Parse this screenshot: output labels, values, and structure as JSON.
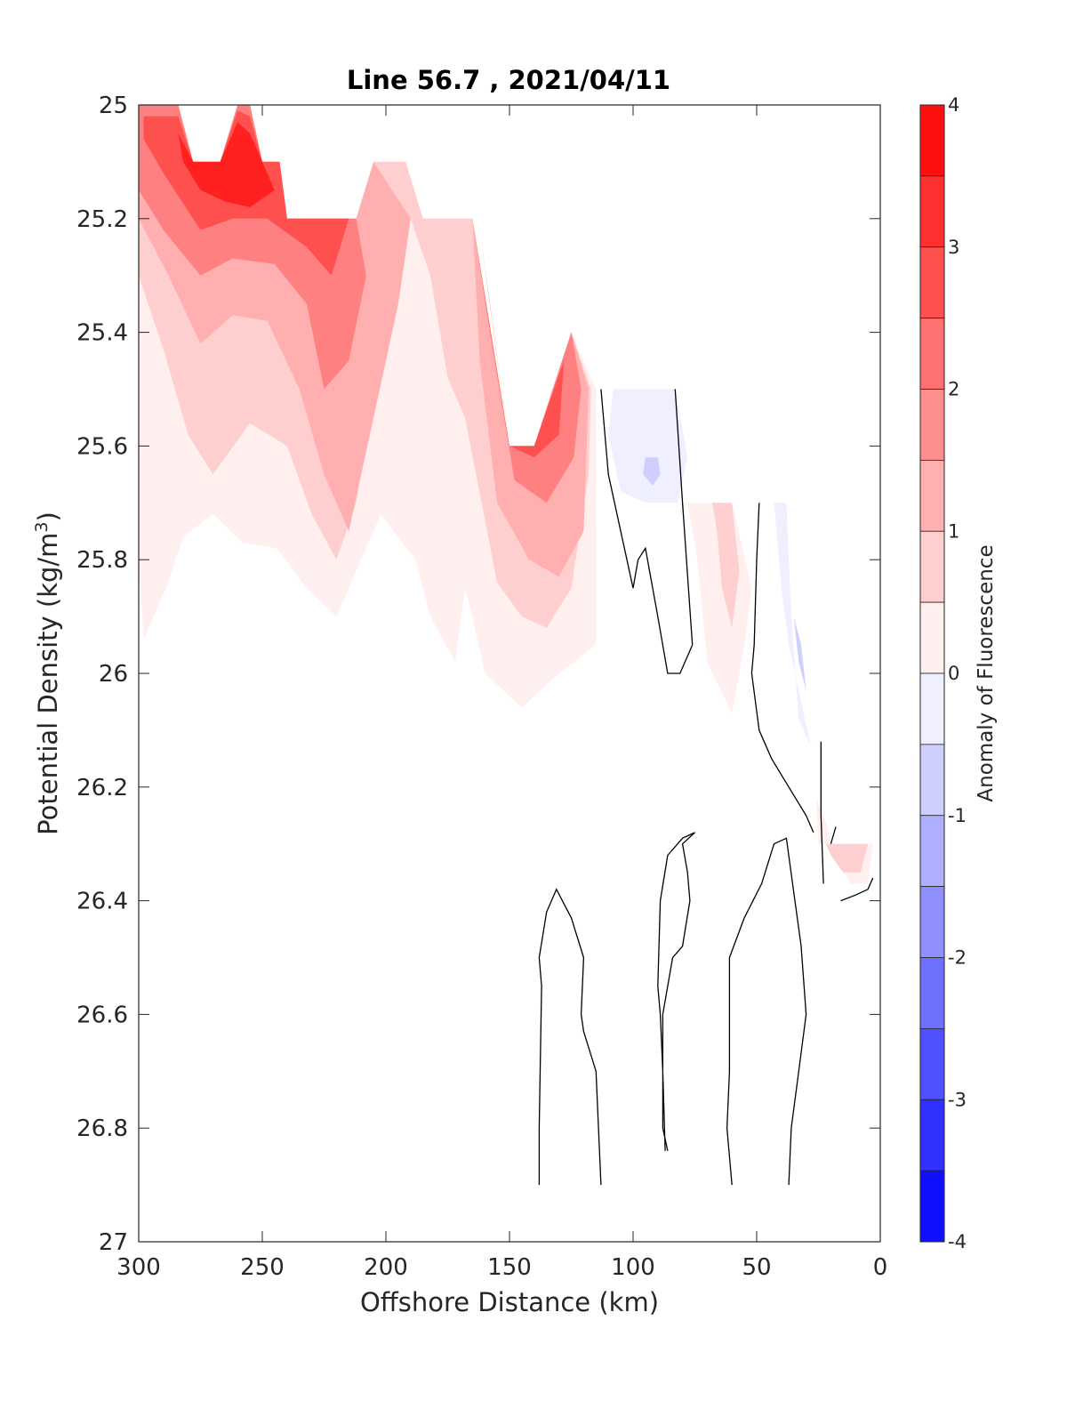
{
  "chart_data": {
    "type": "contour",
    "title": "Line 56.7 , 2021/04/11",
    "xlabel": "Offshore Distance (km)",
    "ylabel": "Potential Density (kg/m³)",
    "ylabel_parts": {
      "base": "Potential Density (kg/m",
      "superscript": "3",
      "suffix": ")"
    },
    "x_reversed": true,
    "y_reversed": true,
    "xlim": [
      0,
      300
    ],
    "ylim": [
      25,
      27
    ],
    "x_ticks": [
      300,
      250,
      200,
      150,
      100,
      50,
      0
    ],
    "x_tick_labels": [
      "300",
      "250",
      "200",
      "150",
      "100",
      "50",
      "0"
    ],
    "y_ticks": [
      25,
      25.2,
      25.4,
      25.6,
      25.8,
      26,
      26.2,
      26.4,
      26.6,
      26.8,
      27
    ],
    "y_tick_labels": [
      "25",
      "25.2",
      "25.4",
      "25.6",
      "25.8",
      "26",
      "26.2",
      "26.4",
      "26.6",
      "26.8",
      "27"
    ],
    "colorbar": {
      "label": "Anomaly of Fluorescence",
      "range": [
        -4,
        4
      ],
      "levels": 16,
      "ticks": [
        4,
        3,
        2,
        1,
        0,
        -1,
        -2,
        -3,
        -4
      ],
      "tick_labels": [
        "4",
        "3",
        "2",
        "1",
        "0",
        "-1",
        "-2",
        "-3",
        "-4"
      ],
      "colors": {
        "positive": "#ff0000",
        "zero": "#ffffff",
        "negative": "#0000ff"
      }
    },
    "positive_regions": [
      {
        "level": 0.25,
        "points": [
          [
            300,
            25
          ],
          [
            284,
            25
          ],
          [
            278,
            25.1
          ],
          [
            267,
            25.1
          ],
          [
            260,
            25
          ],
          [
            255,
            25
          ],
          [
            250,
            25.1
          ],
          [
            243,
            25.1
          ],
          [
            240,
            25.2
          ],
          [
            212,
            25.2
          ],
          [
            205,
            25.1
          ],
          [
            192,
            25.1
          ],
          [
            185,
            25.2
          ],
          [
            165,
            25.2
          ],
          [
            150,
            25.6
          ],
          [
            140,
            25.6
          ],
          [
            125,
            25.4
          ],
          [
            115,
            25.5
          ],
          [
            115,
            25.95
          ],
          [
            130,
            26
          ],
          [
            145,
            26.06
          ],
          [
            160,
            26
          ],
          [
            165,
            25.9
          ],
          [
            168,
            25.85
          ],
          [
            172,
            25.98
          ],
          [
            182,
            25.9
          ],
          [
            188,
            25.8
          ],
          [
            202,
            25.72
          ],
          [
            220,
            25.9
          ],
          [
            232,
            25.85
          ],
          [
            244,
            25.78
          ],
          [
            258,
            25.77
          ],
          [
            270,
            25.72
          ],
          [
            282,
            25.76
          ],
          [
            289,
            25.85
          ],
          [
            298,
            25.94
          ],
          [
            300,
            25.8
          ]
        ]
      },
      {
        "level": 0.25,
        "points": [
          [
            78,
            25.7
          ],
          [
            60,
            25.7
          ],
          [
            52,
            25.85
          ],
          [
            55,
            25.95
          ],
          [
            60,
            26.07
          ],
          [
            70,
            25.98
          ],
          [
            74,
            25.8
          ]
        ]
      },
      {
        "level": 0.25,
        "points": [
          [
            25,
            26.3
          ],
          [
            3,
            26.3
          ],
          [
            5,
            26.37
          ],
          [
            12,
            26.37
          ],
          [
            18,
            26.33
          ],
          [
            22,
            26.26
          ],
          [
            26,
            26.22
          ]
        ]
      },
      {
        "level": 0.75,
        "points": [
          [
            300,
            25
          ],
          [
            284,
            25
          ],
          [
            278,
            25.1
          ],
          [
            267,
            25.1
          ],
          [
            260,
            25
          ],
          [
            255,
            25
          ],
          [
            250,
            25.1
          ],
          [
            243,
            25.1
          ],
          [
            240,
            25.2
          ],
          [
            212,
            25.2
          ],
          [
            205,
            25.1
          ],
          [
            192,
            25.1
          ],
          [
            185,
            25.2
          ],
          [
            165,
            25.2
          ],
          [
            150,
            25.6
          ],
          [
            140,
            25.6
          ],
          [
            125,
            25.4
          ],
          [
            117,
            25.5
          ],
          [
            118,
            25.65
          ],
          [
            125,
            25.85
          ],
          [
            135,
            25.92
          ],
          [
            145,
            25.9
          ],
          [
            155,
            25.84
          ],
          [
            168,
            25.55
          ],
          [
            175,
            25.48
          ],
          [
            182,
            25.3
          ],
          [
            190,
            25.2
          ],
          [
            200,
            25.35
          ],
          [
            212,
            25.7
          ],
          [
            220,
            25.8
          ],
          [
            230,
            25.72
          ],
          [
            240,
            25.6
          ],
          [
            255,
            25.56
          ],
          [
            270,
            25.65
          ],
          [
            280,
            25.58
          ],
          [
            290,
            25.43
          ],
          [
            300,
            25.3
          ]
        ]
      },
      {
        "level": 0.75,
        "points": [
          [
            68,
            25.7
          ],
          [
            60,
            25.7
          ],
          [
            57,
            25.82
          ],
          [
            60,
            25.92
          ],
          [
            64,
            25.85
          ],
          [
            66,
            25.75
          ]
        ]
      },
      {
        "level": 0.75,
        "points": [
          [
            22,
            26.3
          ],
          [
            5,
            26.3
          ],
          [
            8,
            26.35
          ],
          [
            15,
            26.35
          ],
          [
            20,
            26.32
          ]
        ]
      },
      {
        "level": 1.25,
        "points": [
          [
            300,
            25
          ],
          [
            284,
            25
          ],
          [
            278,
            25.1
          ],
          [
            267,
            25.1
          ],
          [
            260,
            25
          ],
          [
            255,
            25
          ],
          [
            250,
            25.1
          ],
          [
            243,
            25.1
          ],
          [
            240,
            25.2
          ],
          [
            212,
            25.2
          ],
          [
            205,
            25.1
          ],
          [
            190,
            25.2
          ],
          [
            195,
            25.35
          ],
          [
            205,
            25.55
          ],
          [
            215,
            25.75
          ],
          [
            225,
            25.65
          ],
          [
            235,
            25.5
          ],
          [
            248,
            25.38
          ],
          [
            262,
            25.37
          ],
          [
            275,
            25.42
          ],
          [
            288,
            25.3
          ],
          [
            300,
            25.2
          ]
        ]
      },
      {
        "level": 1.25,
        "points": [
          [
            165,
            25.2
          ],
          [
            150,
            25.6
          ],
          [
            140,
            25.6
          ],
          [
            125,
            25.4
          ],
          [
            118,
            25.5
          ],
          [
            120,
            25.75
          ],
          [
            130,
            25.83
          ],
          [
            142,
            25.8
          ],
          [
            155,
            25.7
          ],
          [
            162,
            25.45
          ]
        ]
      },
      {
        "level": 2.0,
        "points": [
          [
            300,
            25
          ],
          [
            284,
            25
          ],
          [
            278,
            25.1
          ],
          [
            267,
            25.1
          ],
          [
            260,
            25
          ],
          [
            255,
            25
          ],
          [
            250,
            25.1
          ],
          [
            243,
            25.1
          ],
          [
            240,
            25.2
          ],
          [
            212,
            25.2
          ],
          [
            208,
            25.3
          ],
          [
            215,
            25.45
          ],
          [
            225,
            25.5
          ],
          [
            232,
            25.35
          ],
          [
            245,
            25.28
          ],
          [
            262,
            25.27
          ],
          [
            275,
            25.3
          ],
          [
            290,
            25.22
          ],
          [
            300,
            25.15
          ]
        ]
      },
      {
        "level": 2.0,
        "points": [
          [
            165,
            25.2
          ],
          [
            150,
            25.6
          ],
          [
            140,
            25.6
          ],
          [
            125,
            25.4
          ],
          [
            121,
            25.5
          ],
          [
            124,
            25.62
          ],
          [
            135,
            25.7
          ],
          [
            148,
            25.66
          ],
          [
            158,
            25.4
          ]
        ]
      },
      {
        "level": 2.75,
        "points": [
          [
            298,
            25.02
          ],
          [
            284,
            25.02
          ],
          [
            278,
            25.1
          ],
          [
            267,
            25.1
          ],
          [
            260,
            25.01
          ],
          [
            255,
            25.02
          ],
          [
            250,
            25.1
          ],
          [
            243,
            25.1
          ],
          [
            240,
            25.2
          ],
          [
            215,
            25.2
          ],
          [
            222,
            25.3
          ],
          [
            232,
            25.25
          ],
          [
            248,
            25.2
          ],
          [
            262,
            25.2
          ],
          [
            275,
            25.22
          ],
          [
            290,
            25.12
          ],
          [
            298,
            25.06
          ]
        ]
      },
      {
        "level": 2.75,
        "points": [
          [
            162,
            25.22
          ],
          [
            150,
            25.6
          ],
          [
            140,
            25.6
          ],
          [
            128,
            25.45
          ],
          [
            130,
            25.58
          ],
          [
            140,
            25.62
          ],
          [
            150,
            25.6
          ],
          [
            158,
            25.35
          ]
        ]
      },
      {
        "level": 3.5,
        "points": [
          [
            284,
            25.05
          ],
          [
            278,
            25.1
          ],
          [
            267,
            25.1
          ],
          [
            260,
            25.03
          ],
          [
            255,
            25.05
          ],
          [
            250,
            25.1
          ],
          [
            245,
            25.15
          ],
          [
            255,
            25.18
          ],
          [
            265,
            25.17
          ],
          [
            275,
            25.15
          ],
          [
            282,
            25.1
          ]
        ]
      }
    ],
    "negative_regions": [
      {
        "level": -0.25,
        "points": [
          [
            108,
            25.5
          ],
          [
            83,
            25.5
          ],
          [
            78,
            25.62
          ],
          [
            82,
            25.7
          ],
          [
            95,
            25.7
          ],
          [
            105,
            25.68
          ],
          [
            110,
            25.58
          ]
        ]
      },
      {
        "level": -0.75,
        "points": [
          [
            95,
            25.62
          ],
          [
            90,
            25.62
          ],
          [
            89,
            25.65
          ],
          [
            92,
            25.67
          ],
          [
            96,
            25.65
          ]
        ]
      },
      {
        "level": -0.25,
        "points": [
          [
            43,
            25.7
          ],
          [
            38,
            25.7
          ],
          [
            36,
            25.9
          ],
          [
            33,
            26.08
          ],
          [
            28,
            26.13
          ],
          [
            32,
            26.05
          ],
          [
            37,
            25.95
          ],
          [
            40,
            25.85
          ]
        ]
      },
      {
        "level": -0.75,
        "points": [
          [
            35,
            25.9
          ],
          [
            33,
            25.98
          ],
          [
            30,
            26.03
          ],
          [
            32,
            25.95
          ]
        ]
      }
    ],
    "zero_contours": [
      [
        [
          113,
          25.5
        ],
        [
          110,
          25.65
        ],
        [
          105,
          25.75
        ],
        [
          100,
          25.85
        ],
        [
          98,
          25.8
        ],
        [
          95,
          25.78
        ],
        [
          90,
          25.9
        ],
        [
          86,
          26
        ],
        [
          81,
          26
        ],
        [
          76,
          25.95
        ],
        [
          80,
          25.7
        ],
        [
          83,
          25.5
        ]
      ],
      [
        [
          49,
          25.7
        ],
        [
          50,
          25.8
        ],
        [
          51,
          25.95
        ],
        [
          52,
          26
        ],
        [
          49,
          26.1
        ],
        [
          44,
          26.15
        ],
        [
          37,
          26.2
        ],
        [
          30,
          26.25
        ],
        [
          27,
          26.28
        ]
      ],
      [
        [
          24,
          26.12
        ],
        [
          24,
          26.25
        ],
        [
          23,
          26.37
        ]
      ],
      [
        [
          20,
          26.3
        ],
        [
          18,
          26.27
        ]
      ],
      [
        [
          16,
          26.4
        ],
        [
          10,
          26.39
        ],
        [
          5,
          26.38
        ],
        [
          3,
          26.36
        ]
      ],
      [
        [
          138,
          26.9
        ],
        [
          138,
          26.8
        ],
        [
          137,
          26.55
        ],
        [
          138,
          26.5
        ],
        [
          135,
          26.42
        ],
        [
          131,
          26.38
        ],
        [
          125,
          26.43
        ],
        [
          120,
          26.5
        ],
        [
          121,
          26.6
        ],
        [
          120,
          26.63
        ],
        [
          115,
          26.7
        ],
        [
          113,
          26.9
        ]
      ],
      [
        [
          86,
          26.84
        ],
        [
          88,
          26.8
        ],
        [
          88,
          26.6
        ],
        [
          84,
          26.5
        ],
        [
          80,
          26.48
        ],
        [
          77,
          26.4
        ],
        [
          78,
          26.35
        ],
        [
          80,
          26.3
        ],
        [
          75,
          26.28
        ],
        [
          80,
          26.29
        ],
        [
          86,
          26.32
        ],
        [
          89,
          26.4
        ],
        [
          90,
          26.55
        ],
        [
          89,
          26.6
        ],
        [
          88,
          26.7
        ],
        [
          87,
          26.84
        ]
      ],
      [
        [
          60,
          26.9
        ],
        [
          62,
          26.8
        ],
        [
          61,
          26.7
        ],
        [
          61,
          26.5
        ],
        [
          55,
          26.43
        ],
        [
          48,
          26.37
        ],
        [
          43,
          26.3
        ],
        [
          38,
          26.29
        ],
        [
          32,
          26.48
        ],
        [
          30,
          26.6
        ],
        [
          33,
          26.7
        ],
        [
          36,
          26.8
        ],
        [
          37,
          26.9
        ]
      ]
    ]
  }
}
